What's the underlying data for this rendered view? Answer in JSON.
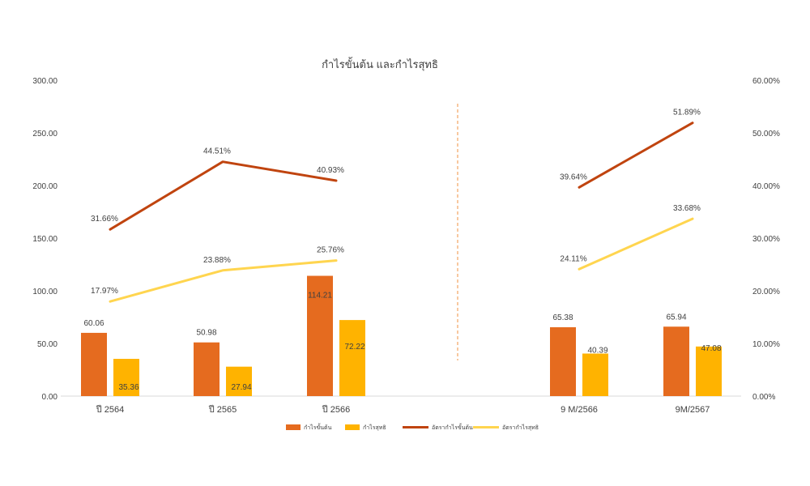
{
  "chart_data": {
    "type": "bar",
    "title": "กำไรขั้นต้น และกำไรสุทธิ",
    "categories": [
      "ปี 2564",
      "ปี 2565",
      "ปี 2566",
      "9 M/2566",
      "9M/2567"
    ],
    "ylim": [
      0,
      300
    ],
    "y2lim": [
      0,
      0.6
    ],
    "y_ticks": [
      "0.00",
      "50.00",
      "100.00",
      "150.00",
      "200.00",
      "250.00",
      "300.00"
    ],
    "y2_ticks": [
      "0.00%",
      "10.00%",
      "20.00%",
      "30.00%",
      "40.00%",
      "50.00%",
      "60.00%"
    ],
    "divider": "dashed vertical line between ปี 2566 and 9 M/2566",
    "legend_position": "bottom",
    "series": [
      {
        "name": "กำไรขั้นต้น",
        "kind": "bar",
        "axis": "left",
        "color": "#E56B1F",
        "values": [
          60.06,
          50.98,
          114.21,
          65.38,
          65.94
        ],
        "labels": [
          "60.06",
          "50.98",
          "114.21",
          "65.38",
          "65.94"
        ]
      },
      {
        "name": "กำไรสุทธิ",
        "kind": "bar",
        "axis": "left",
        "color": "#FFB300",
        "values": [
          35.36,
          27.94,
          72.22,
          40.39,
          47.08
        ],
        "labels": [
          "35.36",
          "27.94",
          "72.22",
          "40.39",
          "47.08"
        ]
      },
      {
        "name": "อัตรากำไรขั้นต้น",
        "kind": "line",
        "axis": "right",
        "color": "#C0440F",
        "groups": [
          [
            0,
            1,
            2
          ],
          [
            3,
            4
          ]
        ],
        "values": [
          0.3166,
          0.4451,
          0.4093,
          0.3964,
          0.5189
        ],
        "labels": [
          "31.66%",
          "44.51%",
          "40.93%",
          "39.64%",
          "51.89%"
        ]
      },
      {
        "name": "อัตรากำไรสุทธิ",
        "kind": "line",
        "axis": "right",
        "color": "#FFD54F",
        "groups": [
          [
            0,
            1,
            2
          ],
          [
            3,
            4
          ]
        ],
        "values": [
          0.1797,
          0.2388,
          0.2576,
          0.2411,
          0.3368
        ],
        "labels": [
          "17.97%",
          "23.88%",
          "25.76%",
          "24.11%",
          "33.68%"
        ]
      }
    ]
  }
}
